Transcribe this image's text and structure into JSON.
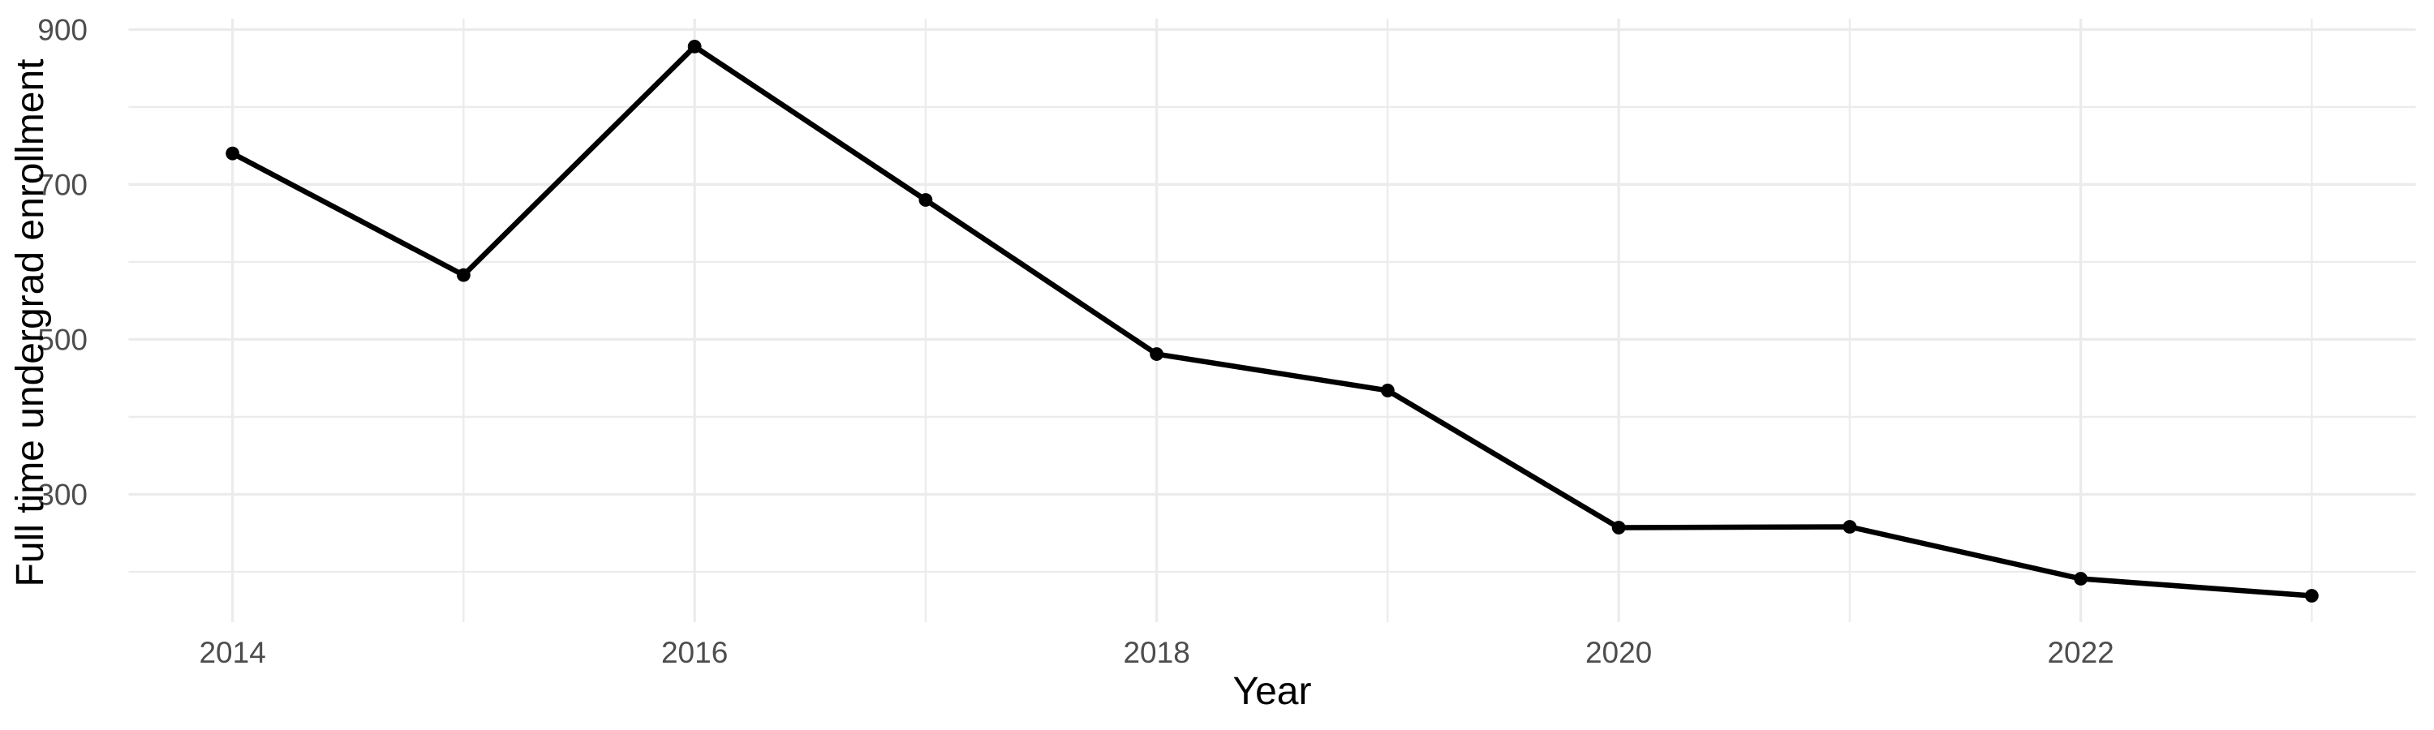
{
  "chart_data": {
    "type": "line",
    "title": "",
    "xlabel": "Year",
    "ylabel": "Full time undergrad enrollment",
    "x": [
      2014,
      2015,
      2016,
      2017,
      2018,
      2019,
      2020,
      2021,
      2022,
      2023
    ],
    "series": [
      {
        "name": "Full time undergrad enrollment",
        "values": [
          740,
          583,
          878,
          680,
          481,
          434,
          257,
          258,
          191,
          169
        ]
      }
    ],
    "xlim": [
      2013.55,
      2023.45
    ],
    "ylim": [
      135,
      914
    ],
    "x_major_ticks": [
      2014,
      2016,
      2018,
      2020,
      2022
    ],
    "x_minor_ticks": [
      2015,
      2017,
      2019,
      2021,
      2023
    ],
    "y_major_ticks": [
      300,
      500,
      700,
      900
    ],
    "y_minor_ticks": [
      200,
      400,
      600,
      800
    ],
    "grid": "on",
    "legend_position": "none",
    "colors": {
      "line": "#000000",
      "point": "#000000",
      "grid_major": "#ebebeb",
      "grid_minor": "#ebebeb",
      "tick_label": "#4d4d4d",
      "axis_title": "#000000",
      "background": "#ffffff"
    }
  }
}
